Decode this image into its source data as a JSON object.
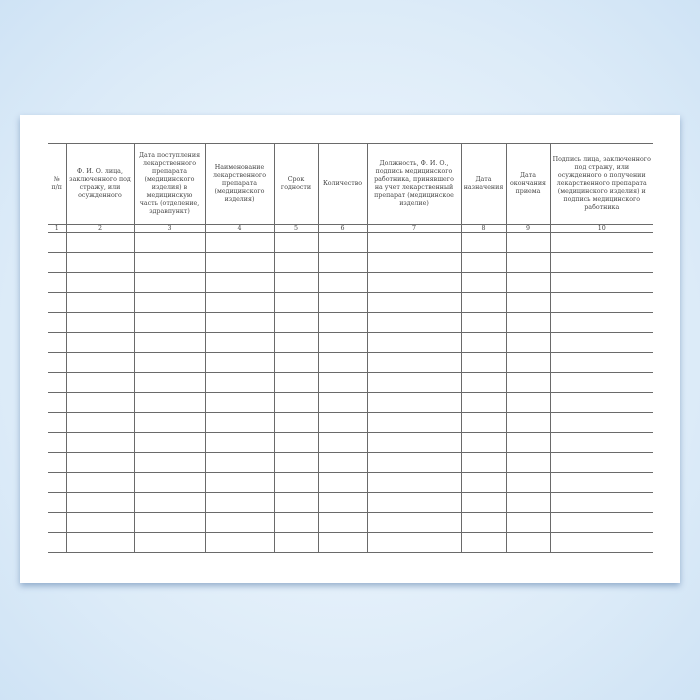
{
  "journal_table": {
    "headers": [
      "№ п/п",
      "Ф. И. О. лица, заключенного под стражу, или осужденного",
      "Дата поступления лекарственного препарата (медицинского изделия) в медицинскую часть (отделение, здравпункт)",
      "Наименование лекарственного препарата (медицинского изделия)",
      "Срок годности",
      "Количество",
      "Должность, Ф. И. О., подпись медицинского работника, принявшего на учет лекарственный препарат (медицинское изделие)",
      "Дата назначения",
      "Дата окончания приема",
      "Подпись лица, заключенного под стражу, или осужденного о получении лекарственного препарата (медицинского изделия) и подпись медицинского работника"
    ],
    "column_numbers": [
      "1",
      "2",
      "3",
      "4",
      "5",
      "6",
      "7",
      "8",
      "9",
      "10"
    ],
    "empty_rows": 16
  }
}
